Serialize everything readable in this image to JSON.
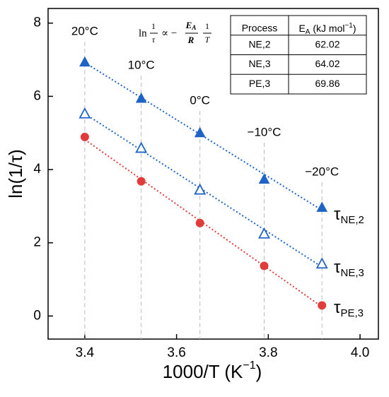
{
  "chart_data": {
    "type": "scatter",
    "x": [
      3.4,
      3.523,
      3.651,
      3.791,
      3.917
    ],
    "annotations": [
      "20°C",
      "10°C",
      "0°C",
      "−10°C",
      "−20°C"
    ],
    "tau_symbol": "τ",
    "series": [
      {
        "name": "NE,2",
        "color": "#1f63c6",
        "marker": "triangle-filled",
        "values": [
          6.94,
          5.95,
          5.01,
          3.74,
          2.97
        ]
      },
      {
        "name": "NE,3",
        "color": "#1f63c6",
        "marker": "triangle-open",
        "values": [
          5.53,
          4.59,
          3.45,
          2.25,
          1.43
        ]
      },
      {
        "name": "PE,3",
        "color": "#e03c3c",
        "marker": "circle-filled",
        "values": [
          4.89,
          3.68,
          2.54,
          1.37,
          0.29
        ]
      }
    ],
    "xlabel": {
      "text": "1000/T (K",
      "sup": "−1",
      "close": ")"
    },
    "ylabel": "ln(1/τ)",
    "xlim": [
      3.32,
      4.04
    ],
    "ylim": [
      -0.63,
      8.4
    ],
    "xticks": [
      3.4,
      3.6,
      3.8,
      {
        "value": 4,
        "label": "4.0"
      }
    ],
    "yticks": [
      0,
      2,
      4,
      6,
      8
    ],
    "formula": {
      "ln": "ln",
      "n1": "1",
      "d1": "τ",
      "prop": "∝ −",
      "n2": "E",
      "n2sub": "A",
      "d2": "R",
      "n3": "1",
      "d3": "T"
    },
    "table": {
      "header": [
        "Process",
        {
          "base": "E",
          "sub": "A",
          "text": " (kJ mol",
          "sup": "−1",
          "close": ")"
        }
      ],
      "rows": [
        [
          "NE,2",
          "62.02"
        ],
        [
          "NE,3",
          "64.02"
        ],
        [
          "PE,3",
          "69.86"
        ]
      ]
    }
  }
}
